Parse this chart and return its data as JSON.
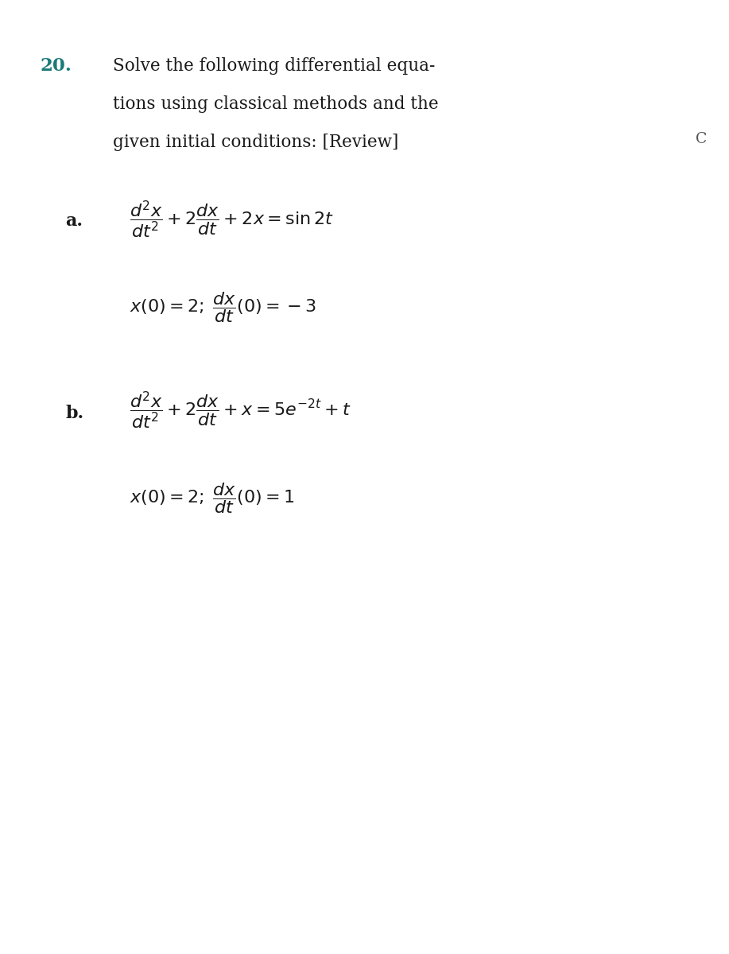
{
  "background_color": "#ffffff",
  "problem_number": "20.",
  "problem_number_color": "#1a7a7a",
  "problem_text_line1": "Solve the following differential equa-",
  "problem_text_line2": "tions using classical methods and the",
  "problem_text_line3": "given initial conditions: [Review]",
  "corner_label": "C",
  "part_a_label": "a.",
  "part_b_label": "b.",
  "eq_a": "$\\dfrac{d^2x}{dt^2} + 2\\dfrac{dx}{dt} + 2x = \\sin 2t$",
  "ic_a": "$x(0) = 2;\\; \\dfrac{dx}{dt}(0) = -3$",
  "eq_b": "$\\dfrac{d^2x}{dt^2} + 2\\dfrac{dx}{dt} + x = 5e^{-2t} + t$",
  "ic_b": "$x(0) = 2;\\; \\dfrac{dx}{dt}(0) = 1$"
}
